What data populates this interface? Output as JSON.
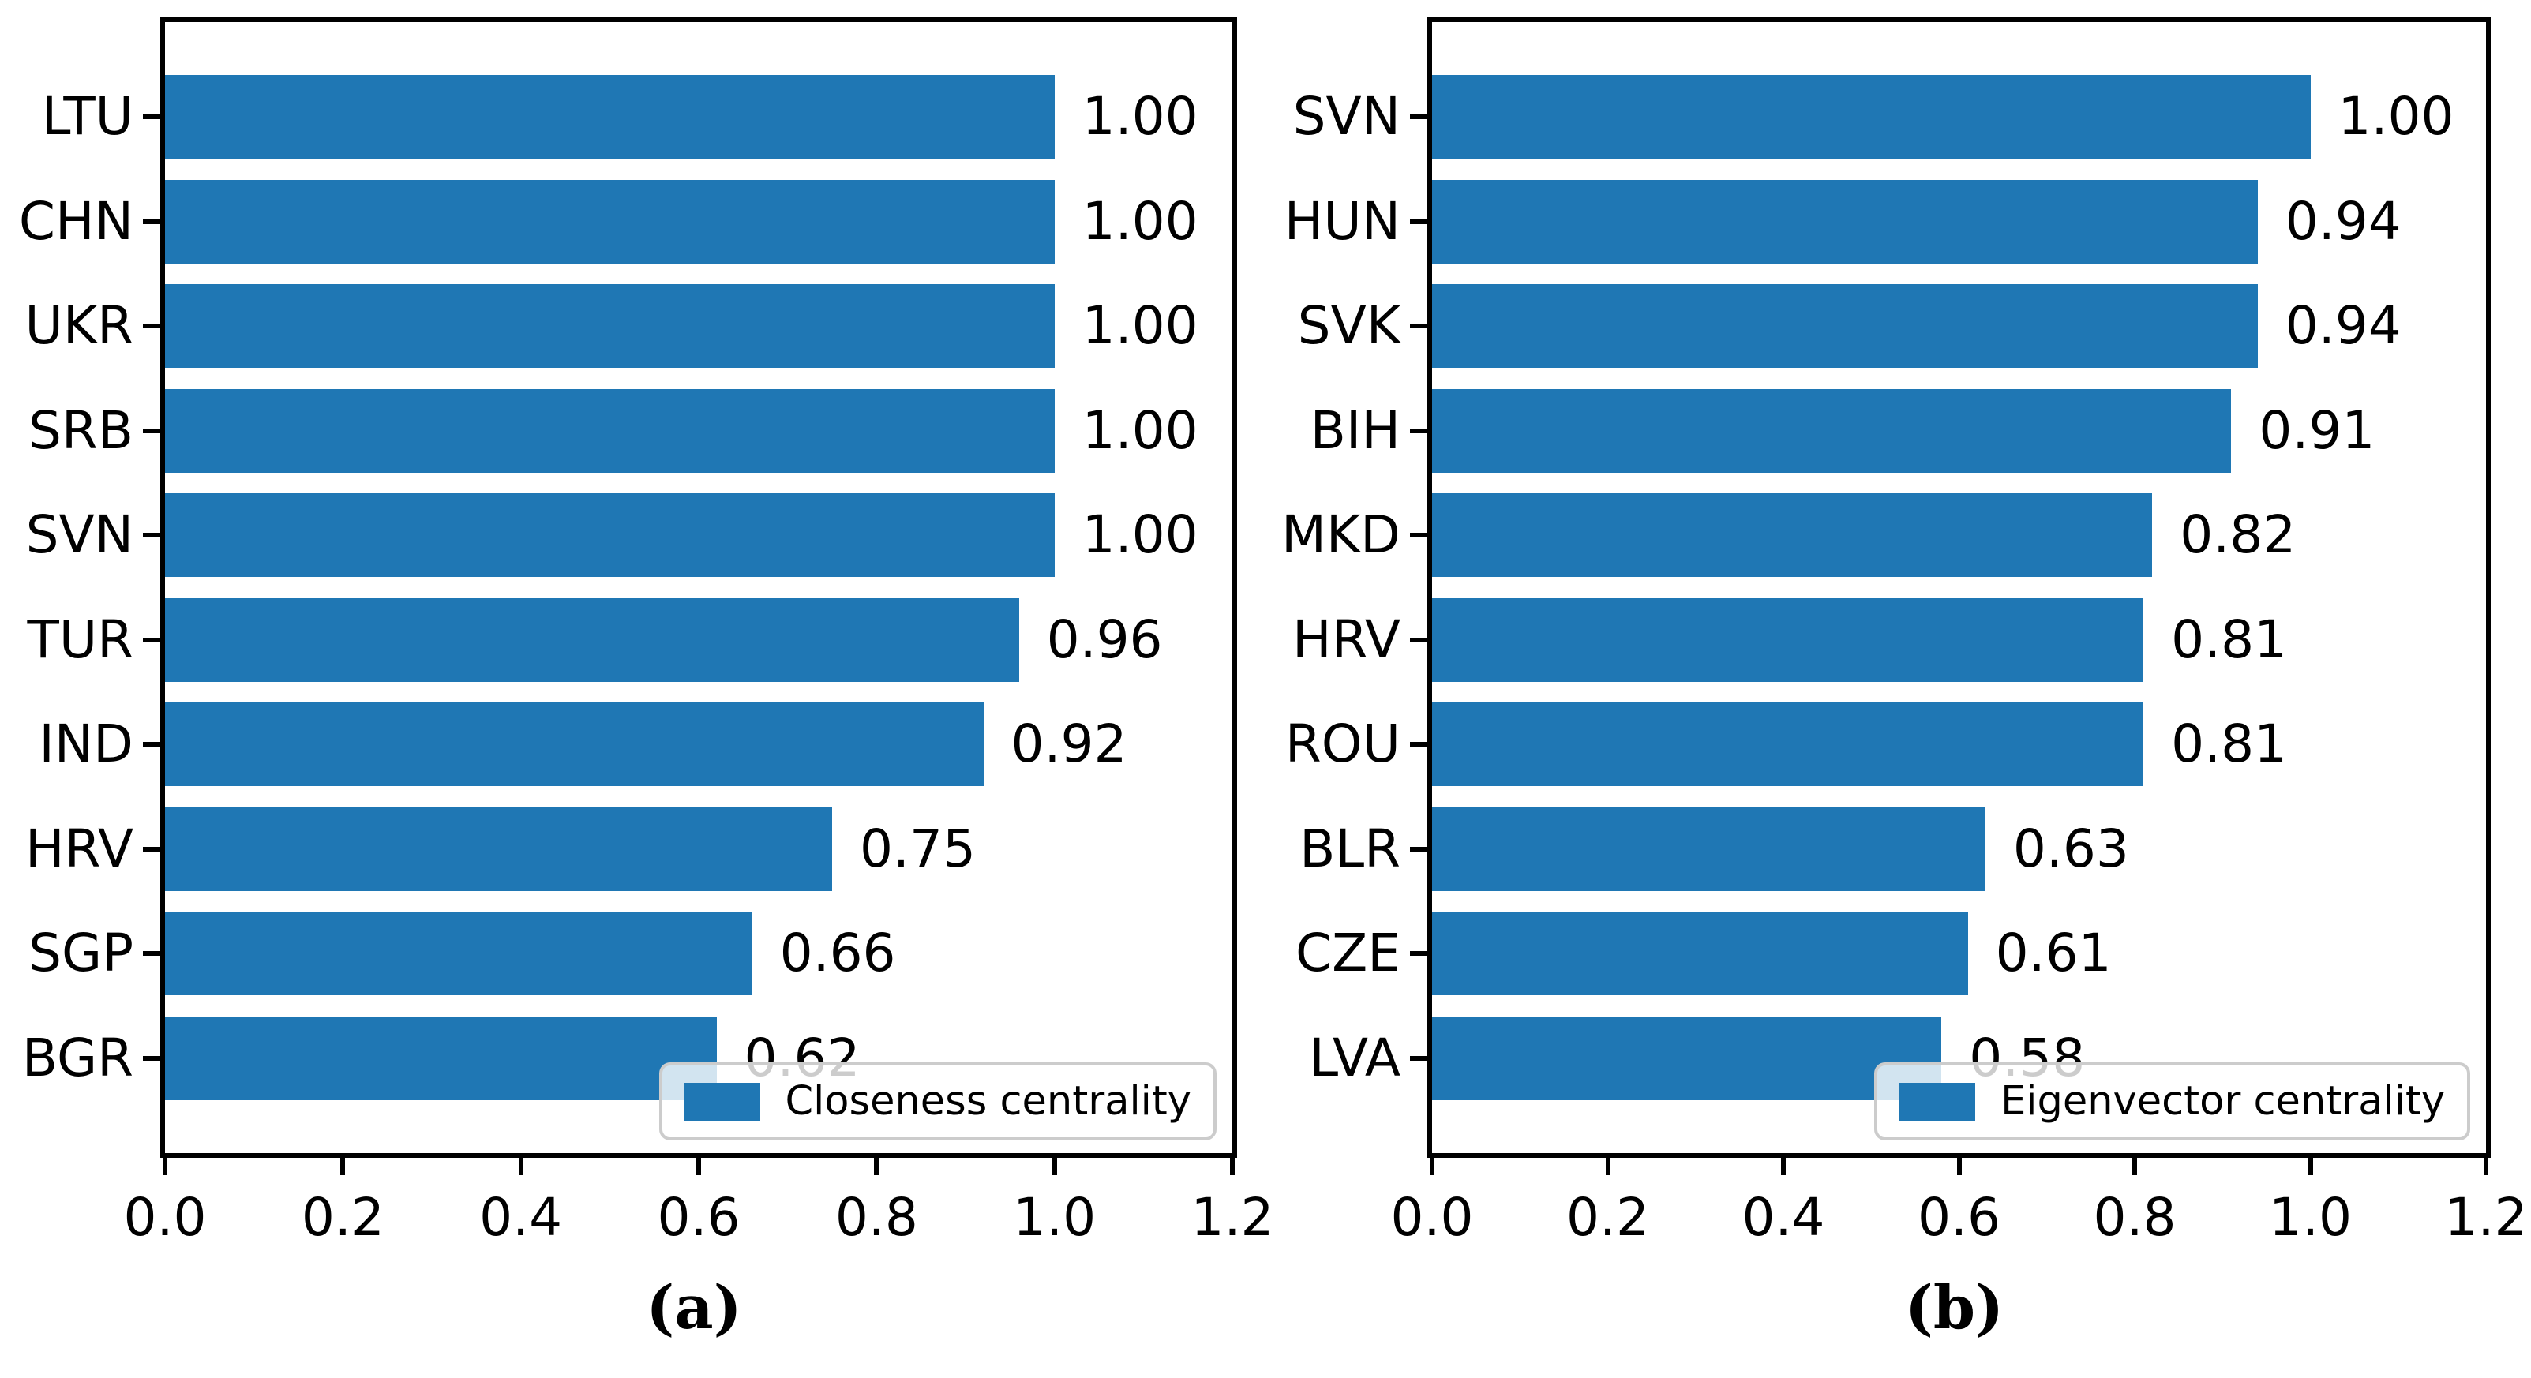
{
  "chart_data": [
    {
      "type": "bar",
      "orientation": "horizontal",
      "panel": "a",
      "caption": "(a)",
      "legend": "Closeness centrality",
      "legend_position": "lower right",
      "categories": [
        "LTU",
        "CHN",
        "UKR",
        "SRB",
        "SVN",
        "TUR",
        "IND",
        "HRV",
        "SGP",
        "BGR"
      ],
      "values": [
        1.0,
        1.0,
        1.0,
        1.0,
        1.0,
        0.96,
        0.92,
        0.75,
        0.66,
        0.62
      ],
      "value_labels": [
        "1.00",
        "1.00",
        "1.00",
        "1.00",
        "1.00",
        "0.96",
        "0.92",
        "0.75",
        "0.66",
        "0.62"
      ],
      "xlim": [
        0.0,
        1.2
      ],
      "xticks": [
        "0.0",
        "0.2",
        "0.4",
        "0.6",
        "0.8",
        "1.0",
        "1.2"
      ],
      "grid": false,
      "bar_color": "#1f77b4"
    },
    {
      "type": "bar",
      "orientation": "horizontal",
      "panel": "b",
      "caption": "(b)",
      "legend": "Eigenvector centrality",
      "legend_position": "lower right",
      "categories": [
        "SVN",
        "HUN",
        "SVK",
        "BIH",
        "MKD",
        "HRV",
        "ROU",
        "BLR",
        "CZE",
        "LVA"
      ],
      "values": [
        1.0,
        0.94,
        0.94,
        0.91,
        0.82,
        0.81,
        0.81,
        0.63,
        0.61,
        0.58
      ],
      "value_labels": [
        "1.00",
        "0.94",
        "0.94",
        "0.91",
        "0.82",
        "0.81",
        "0.81",
        "0.63",
        "0.61",
        "0.58"
      ],
      "xlim": [
        0.0,
        1.2
      ],
      "xticks": [
        "0.0",
        "0.2",
        "0.4",
        "0.6",
        "0.8",
        "1.0",
        "1.2"
      ],
      "grid": false,
      "bar_color": "#1f77b4"
    }
  ],
  "colors": {
    "bar": "#1f77b4",
    "spine": "#000000",
    "text": "#000000",
    "legend_border": "#cccccc",
    "background": "#ffffff"
  }
}
